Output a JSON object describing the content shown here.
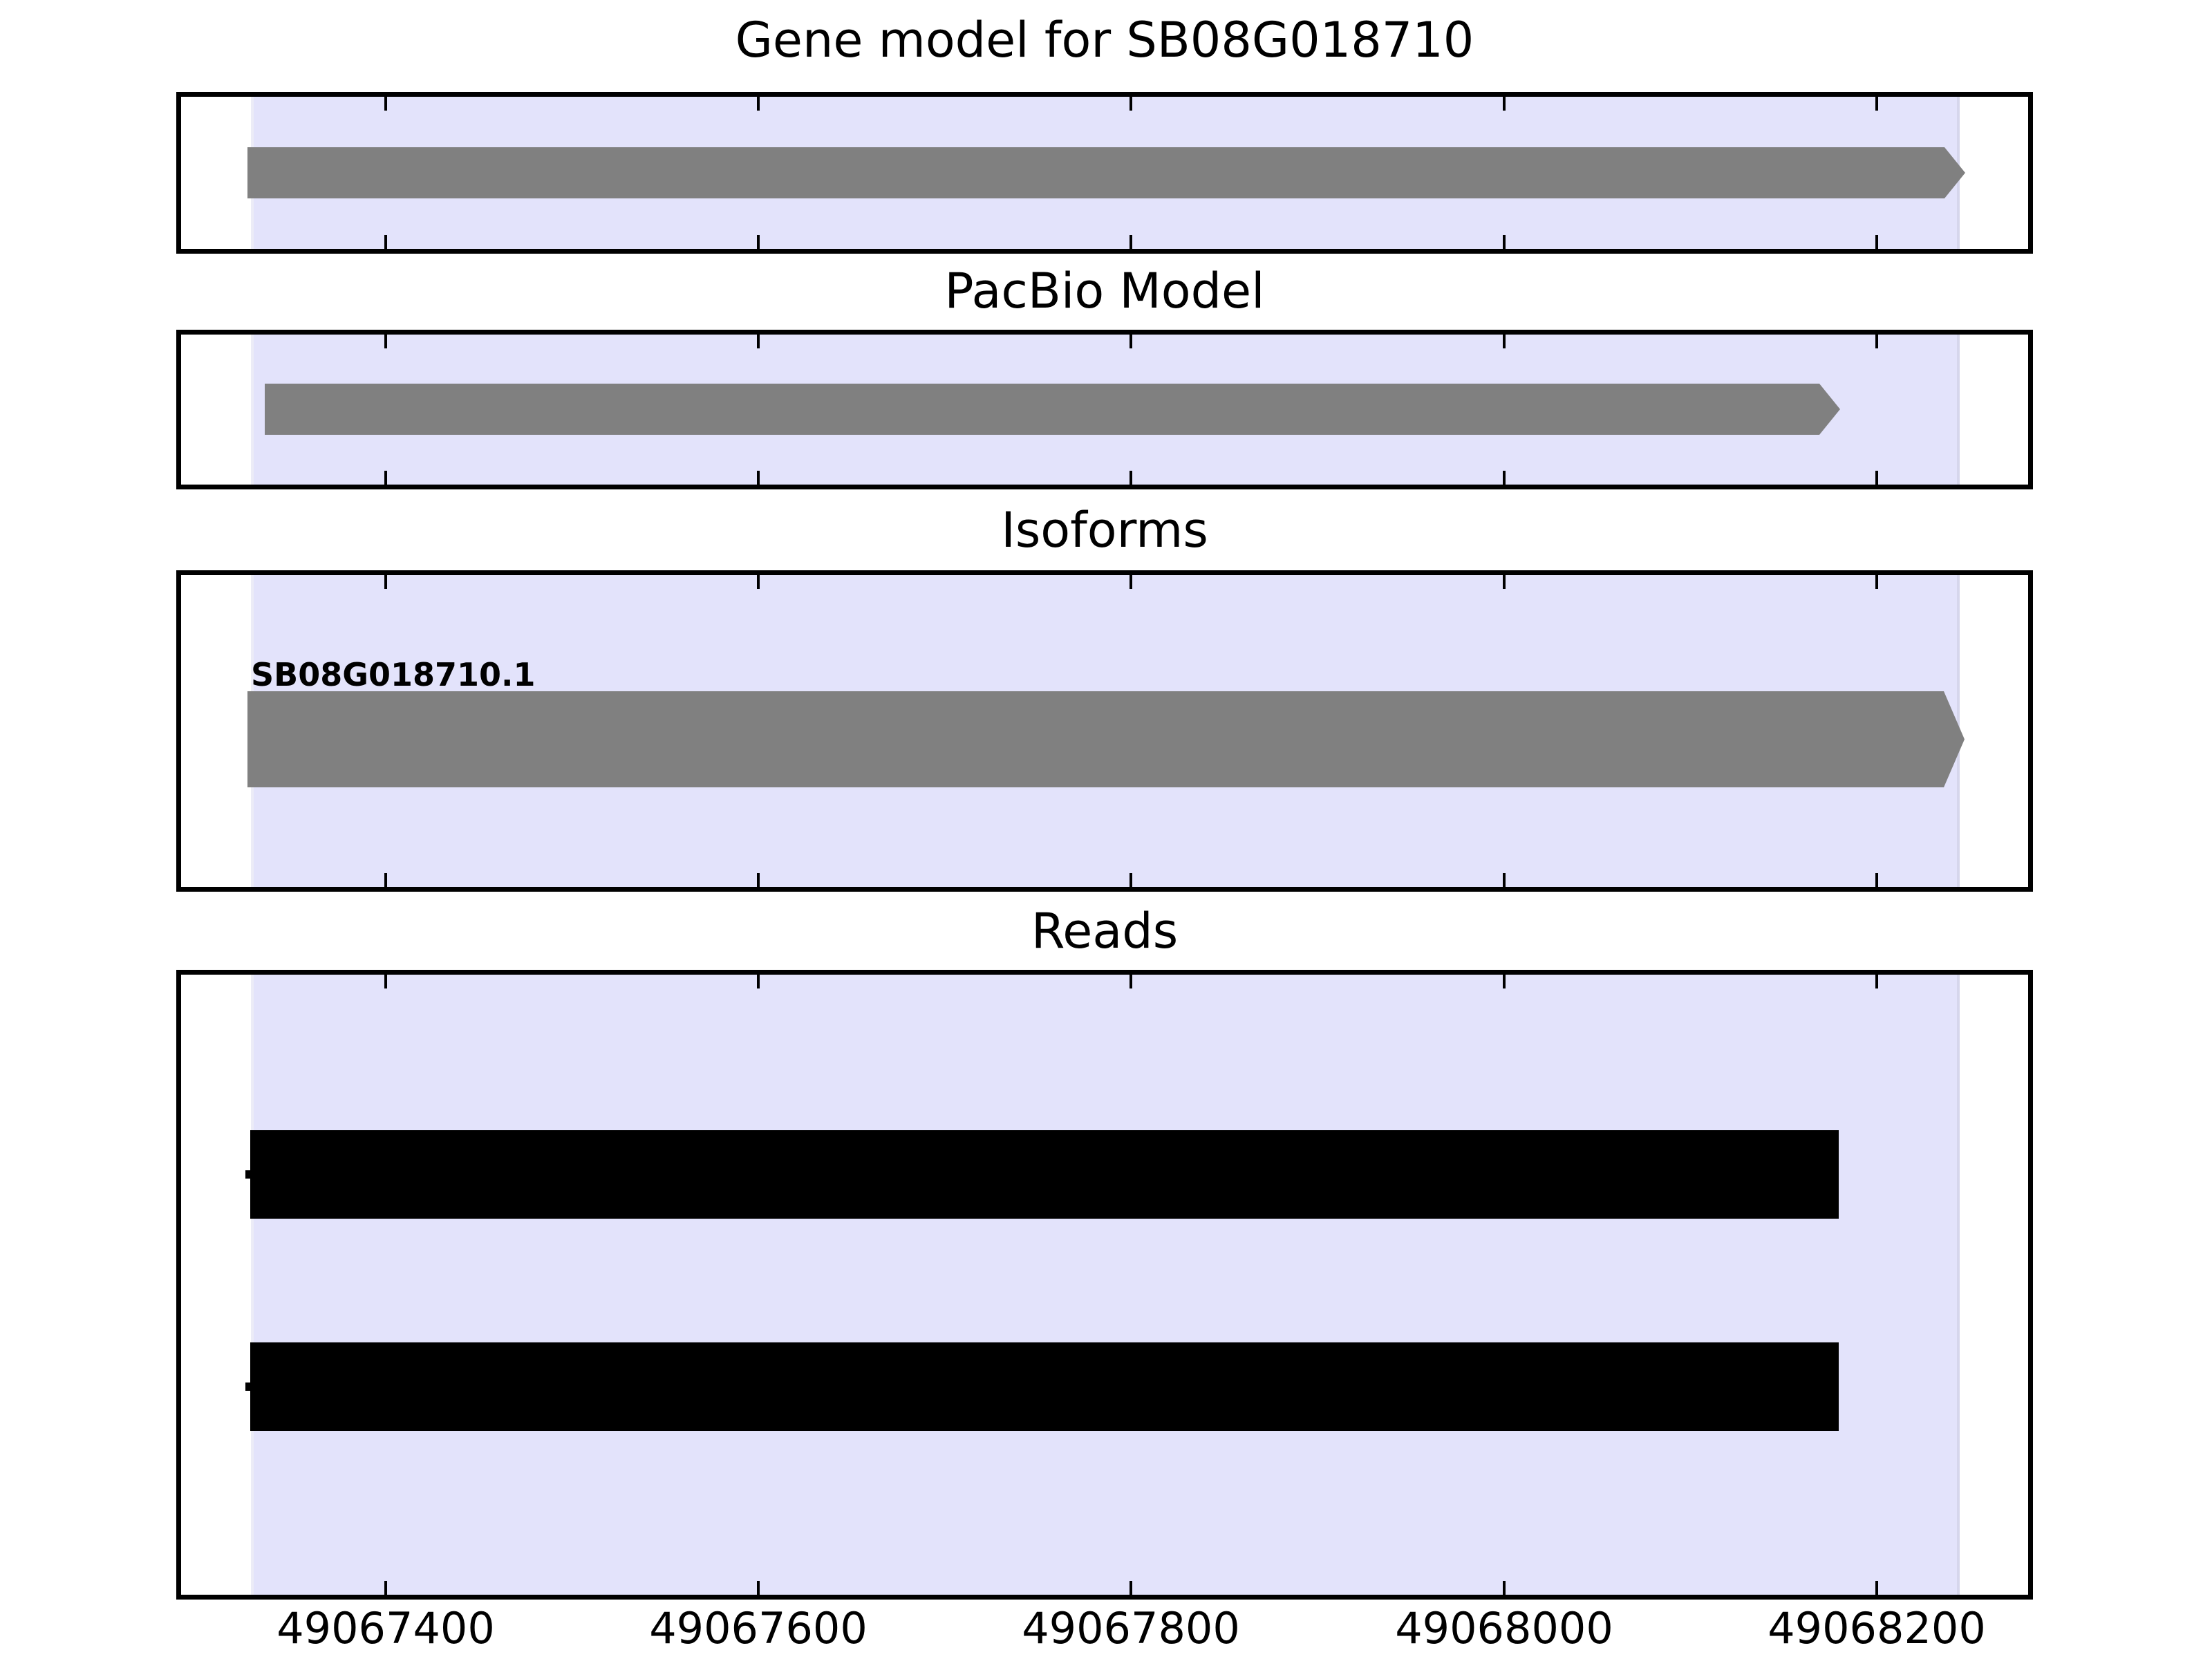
{
  "titles": {
    "gene_model": "Gene model for SB08G018710",
    "pacbio": "PacBio Model",
    "isoforms": "Isoforms",
    "reads": "Reads"
  },
  "isoform_track": {
    "label": "SB08G018710.1"
  },
  "axis": {
    "labels": [
      "49067400",
      "49067600",
      "49067800",
      "49068000",
      "49068200"
    ]
  },
  "colors": {
    "highlight_span": "#e3e3fb",
    "feature_gray": "#808080",
    "read_black": "#000000",
    "panel_border": "#000000"
  },
  "chart_data": {
    "type": "bar",
    "subtype": "genome-browser-tracks",
    "title": "Gene model for SB08G018710",
    "orientation": "horizontal",
    "x_axis": {
      "ticks": [
        49067400,
        49067600,
        49067800,
        49068000,
        49068200
      ],
      "xlim": [
        49067290,
        49068285
      ],
      "grid": false
    },
    "highlight_span": [
      49067330,
      49068245
    ],
    "tracks": [
      {
        "title": "Gene model for SB08G018710",
        "features": [
          {
            "name": "SB08G018710",
            "start": 49067330,
            "end": 49068250,
            "shape": "arrow-right",
            "color": "#808080"
          }
        ]
      },
      {
        "title": "PacBio Model",
        "features": [
          {
            "start": 49067335,
            "end": 49068180,
            "shape": "arrow-right",
            "color": "#808080"
          }
        ]
      },
      {
        "title": "Isoforms",
        "features": [
          {
            "name": "SB08G018710.1",
            "start": 49067330,
            "end": 49068250,
            "shape": "arrow-right",
            "color": "#808080"
          }
        ]
      },
      {
        "title": "Reads",
        "features": [
          {
            "start": 49067330,
            "end": 49068180,
            "shape": "rect",
            "color": "#000000"
          },
          {
            "start": 49067330,
            "end": 49068180,
            "shape": "rect",
            "color": "#000000"
          }
        ]
      }
    ],
    "legend_position": "none"
  }
}
